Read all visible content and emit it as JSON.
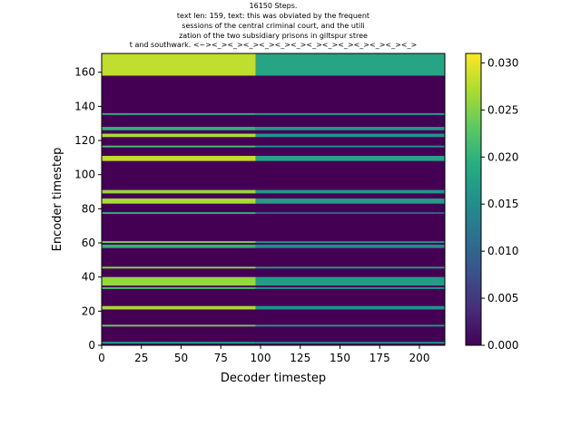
{
  "chart_data": {
    "type": "heatmap",
    "title_lines": [
      "16150 Steps.",
      "text len: 159, text: this was obviated by the frequent",
      "sessions of the central criminal court, and the utili",
      "zation of the two subsidiary prisons in giltspur stree",
      "t and southwark. <~><_><_><_><_><_><_><_><_><_><_><_><_><_>"
    ],
    "xlabel": "Decoder timestep",
    "ylabel": "Encoder timestep",
    "xlim": [
      0,
      216
    ],
    "ylim": [
      0,
      171
    ],
    "x_ticks": [
      "0",
      "25",
      "50",
      "75",
      "100",
      "125",
      "150",
      "175",
      "200"
    ],
    "y_ticks": [
      "0",
      "20",
      "40",
      "60",
      "80",
      "100",
      "120",
      "140",
      "160"
    ],
    "colorbar": {
      "range": [
        0.0,
        0.031
      ],
      "ticks": [
        "0.000",
        "0.005",
        "0.010",
        "0.015",
        "0.020",
        "0.025",
        "0.030"
      ],
      "colormap": "viridis"
    },
    "background_value": 0.0,
    "band_change_x": 97,
    "bands": [
      {
        "y0": 158,
        "y1": 171,
        "v_left": 0.028,
        "v_right": 0.018
      },
      {
        "y0": 135,
        "y1": 136,
        "v_left": 0.02,
        "v_right": 0.018
      },
      {
        "y0": 126,
        "y1": 128,
        "v_left": 0.02,
        "v_right": 0.016
      },
      {
        "y0": 122,
        "y1": 124,
        "v_left": 0.027,
        "v_right": 0.016
      },
      {
        "y0": 116,
        "y1": 117,
        "v_left": 0.022,
        "v_right": 0.016
      },
      {
        "y0": 108,
        "y1": 111,
        "v_left": 0.028,
        "v_right": 0.018
      },
      {
        "y0": 89,
        "y1": 91,
        "v_left": 0.026,
        "v_right": 0.016
      },
      {
        "y0": 83,
        "y1": 86,
        "v_left": 0.027,
        "v_right": 0.017
      },
      {
        "y0": 77,
        "y1": 78,
        "v_left": 0.02,
        "v_right": 0.01
      },
      {
        "y0": 60,
        "y1": 61,
        "v_left": 0.025,
        "v_right": 0.016
      },
      {
        "y0": 57,
        "y1": 59,
        "v_left": 0.02,
        "v_right": 0.015
      },
      {
        "y0": 45,
        "y1": 46,
        "v_left": 0.026,
        "v_right": 0.017
      },
      {
        "y0": 35,
        "y1": 40,
        "v_left": 0.026,
        "v_right": 0.017
      },
      {
        "y0": 33,
        "y1": 34,
        "v_left": 0.022,
        "v_right": 0.016
      },
      {
        "y0": 21,
        "y1": 23,
        "v_left": 0.027,
        "v_right": 0.016
      },
      {
        "y0": 11,
        "y1": 12,
        "v_left": 0.024,
        "v_right": 0.016
      },
      {
        "y0": 1,
        "y1": 2,
        "v_left": 0.018,
        "v_right": 0.016
      }
    ]
  }
}
